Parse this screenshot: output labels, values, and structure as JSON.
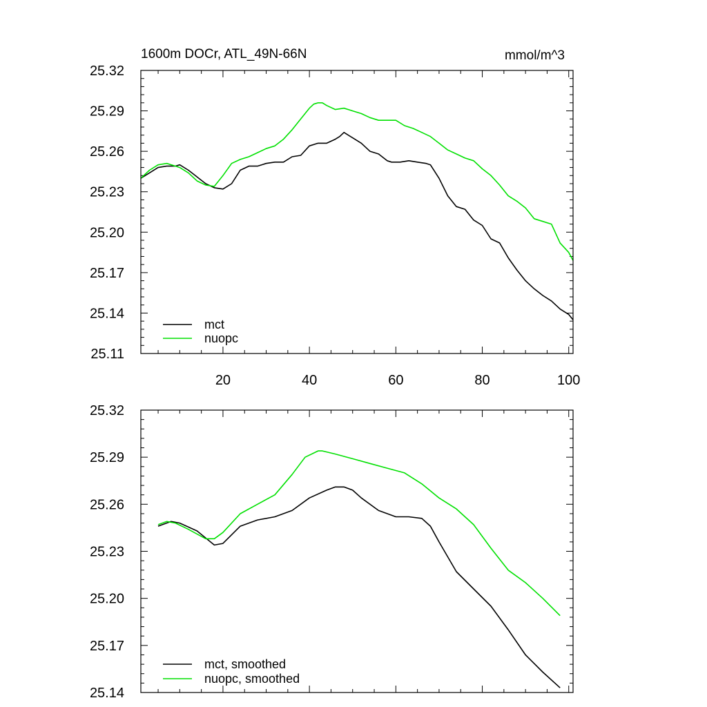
{
  "chart_data": [
    {
      "type": "line",
      "title": "1600m DOCr, ATL_49N-66N",
      "units": "mmol/m^3",
      "xlabel": "",
      "ylabel": "",
      "xlim": [
        1,
        101
      ],
      "ylim": [
        25.11,
        25.32
      ],
      "xticks": [
        20,
        40,
        60,
        80,
        100
      ],
      "xtick_labels": [
        "20",
        "40",
        "60",
        "80",
        "100"
      ],
      "yticks": [
        25.11,
        25.14,
        25.17,
        25.2,
        25.23,
        25.26,
        25.29,
        25.32
      ],
      "ytick_labels": [
        "25.11",
        "25.14",
        "25.17",
        "25.20",
        "25.23",
        "25.26",
        "25.29",
        "25.32"
      ],
      "grid": false,
      "legend_position": "bottom-left",
      "series": [
        {
          "name": "mct",
          "color": "#000000",
          "x": [
            1,
            3,
            5,
            7,
            9,
            10,
            12,
            14,
            16,
            18,
            20,
            22,
            24,
            26,
            28,
            30,
            32,
            34,
            36,
            38,
            40,
            42,
            44,
            46,
            47,
            48,
            50,
            52,
            54,
            56,
            58,
            59,
            61,
            63,
            65,
            67,
            68,
            70,
            72,
            74,
            76,
            78,
            80,
            82,
            84,
            86,
            88,
            90,
            92,
            94,
            96,
            98,
            100,
            101
          ],
          "y": [
            25.24,
            25.244,
            25.248,
            25.249,
            25.249,
            25.25,
            25.246,
            25.241,
            25.236,
            25.233,
            25.232,
            25.236,
            25.246,
            25.249,
            25.249,
            25.251,
            25.252,
            25.252,
            25.256,
            25.257,
            25.264,
            25.266,
            25.266,
            25.269,
            25.271,
            25.274,
            25.27,
            25.266,
            25.26,
            25.258,
            25.253,
            25.252,
            25.252,
            25.253,
            25.252,
            25.251,
            25.25,
            25.24,
            25.227,
            25.219,
            25.217,
            25.209,
            25.205,
            25.195,
            25.192,
            25.181,
            25.172,
            25.164,
            25.158,
            25.153,
            25.149,
            25.143,
            25.139,
            25.135
          ]
        },
        {
          "name": "nuopc",
          "color": "#00e000",
          "x": [
            1,
            3,
            5,
            7,
            9,
            10,
            12,
            14,
            16,
            18,
            20,
            22,
            24,
            26,
            28,
            30,
            32,
            34,
            36,
            38,
            40,
            41,
            42,
            43,
            44,
            46,
            48,
            50,
            52,
            54,
            56,
            58,
            60,
            62,
            64,
            66,
            68,
            70,
            72,
            74,
            76,
            78,
            80,
            82,
            84,
            86,
            88,
            90,
            92,
            94,
            96,
            98,
            100,
            101
          ],
          "y": [
            25.24,
            25.246,
            25.25,
            25.251,
            25.249,
            25.248,
            25.244,
            25.238,
            25.235,
            25.234,
            25.242,
            25.251,
            25.254,
            25.256,
            25.259,
            25.262,
            25.264,
            25.269,
            25.276,
            25.284,
            25.292,
            25.295,
            25.296,
            25.296,
            25.294,
            25.291,
            25.292,
            25.29,
            25.288,
            25.285,
            25.283,
            25.283,
            25.283,
            25.279,
            25.277,
            25.274,
            25.271,
            25.266,
            25.261,
            25.258,
            25.255,
            25.253,
            25.247,
            25.242,
            25.235,
            25.227,
            25.223,
            25.218,
            25.21,
            25.208,
            25.206,
            25.192,
            25.185,
            25.179
          ]
        }
      ]
    },
    {
      "type": "line",
      "title": "",
      "xlabel": "",
      "ylabel": "",
      "xlim": [
        1,
        101
      ],
      "ylim": [
        25.14,
        25.32
      ],
      "xticks": [
        20,
        40,
        60,
        80,
        100
      ],
      "yticks": [
        25.14,
        25.17,
        25.2,
        25.23,
        25.26,
        25.29,
        25.32
      ],
      "ytick_labels": [
        "25.14",
        "25.17",
        "25.20",
        "25.23",
        "25.26",
        "25.29",
        "25.32"
      ],
      "grid": false,
      "legend_position": "bottom-left",
      "series": [
        {
          "name": "mct, smoothed",
          "color": "#000000",
          "x": [
            5,
            8,
            10,
            14,
            18,
            20,
            24,
            28,
            32,
            36,
            40,
            44,
            46,
            48,
            50,
            52,
            56,
            60,
            63,
            66,
            68,
            70,
            74,
            78,
            82,
            86,
            90,
            94,
            98
          ],
          "y": [
            25.246,
            25.249,
            25.248,
            25.243,
            25.234,
            25.235,
            25.246,
            25.25,
            25.252,
            25.256,
            25.264,
            25.269,
            25.271,
            25.271,
            25.269,
            25.264,
            25.256,
            25.252,
            25.252,
            25.251,
            25.246,
            25.236,
            25.217,
            25.206,
            25.195,
            25.18,
            25.164,
            25.153,
            25.143
          ]
        },
        {
          "name": "nuopc, smoothed",
          "color": "#00e000",
          "x": [
            5,
            7,
            9,
            12,
            16,
            18,
            20,
            24,
            28,
            32,
            36,
            39,
            42,
            43,
            46,
            50,
            54,
            58,
            62,
            66,
            70,
            74,
            78,
            82,
            86,
            90,
            94,
            98
          ],
          "y": [
            25.247,
            25.249,
            25.248,
            25.244,
            25.238,
            25.238,
            25.242,
            25.254,
            25.26,
            25.266,
            25.279,
            25.29,
            25.294,
            25.294,
            25.292,
            25.289,
            25.286,
            25.283,
            25.28,
            25.273,
            25.264,
            25.257,
            25.247,
            25.232,
            25.218,
            25.21,
            25.2,
            25.189
          ]
        }
      ]
    }
  ]
}
